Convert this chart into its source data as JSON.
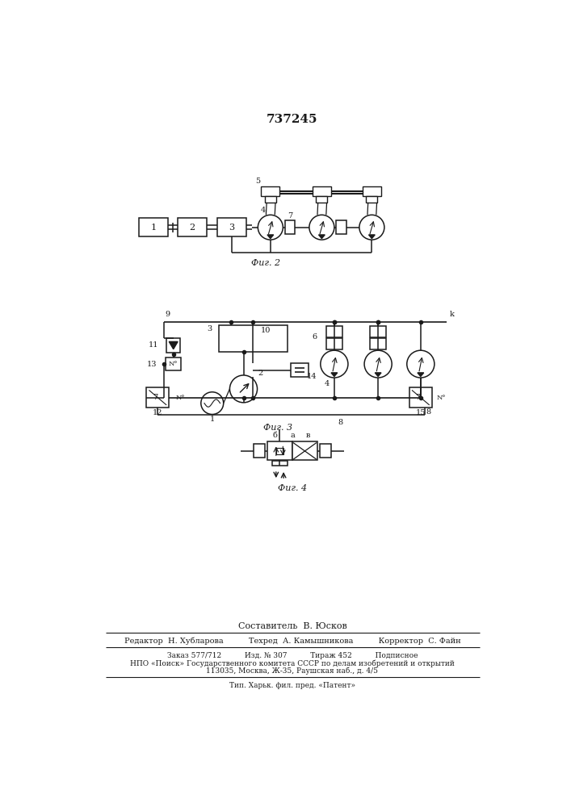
{
  "title": "737245",
  "fig2_label": "Фиг. 2",
  "fig3_label": "Фиг. 3",
  "fig4_label": "Фиг. 4",
  "bg_color": "#ffffff",
  "line_color": "#1a1a1a",
  "footer_lines": [
    "Составитель  В. Юсков",
    "Редактор  Н. Хубларова          Техред  А. Камышникова          Корректор  С. Файн",
    "Заказ 577/712          Изд. № 307          Тираж 452          Подписное",
    "НПО «Поиск» Государственного комитета СССР по делам изобретений и открытий",
    "113035, Москва, Ж-35, Раушская наб., д. 4/5",
    "Тип. Харьк. фил. пред. «Патент»"
  ]
}
